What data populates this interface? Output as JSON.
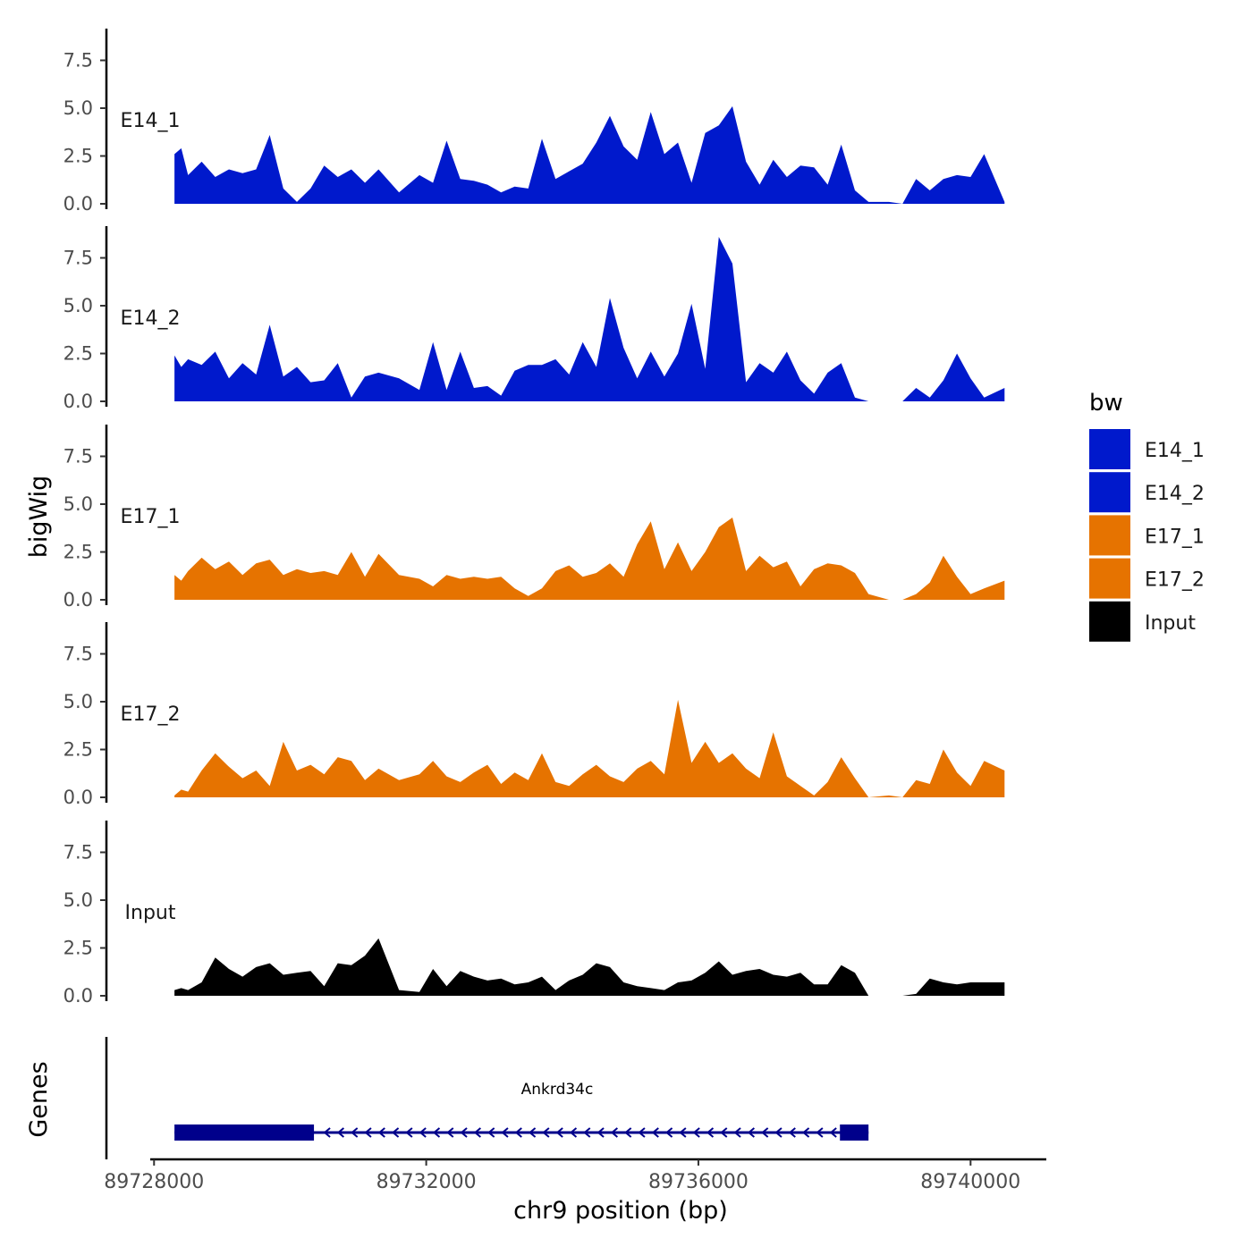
{
  "chart_data": {
    "type": "area",
    "title": "",
    "ylabel": "bigWig",
    "xlabel": "chr9 position (bp)",
    "genes_label": "Genes",
    "ylim": [
      0,
      9.2
    ],
    "y_ticks": [
      0.0,
      2.5,
      5.0,
      7.5
    ],
    "y_tick_labels": [
      "0.0",
      "2.5",
      "5.0",
      "7.5"
    ],
    "x_ticks": [
      89728000,
      89732000,
      89736000,
      89740000
    ],
    "x_tick_labels": [
      "89728000",
      "89732000",
      "89736000",
      "89740000"
    ],
    "xlim": [
      89727300,
      89741100
    ],
    "legend": {
      "title": "bw",
      "position": "right",
      "entries": [
        {
          "label": "E14_1",
          "color": "#0019cc"
        },
        {
          "label": "E14_2",
          "color": "#0019cc"
        },
        {
          "label": "E17_1",
          "color": "#e67300"
        },
        {
          "label": "E17_2",
          "color": "#e67300"
        },
        {
          "label": "Input",
          "color": "#000000"
        }
      ]
    },
    "tracks": [
      {
        "name": "E14_1",
        "color": "#0019cc",
        "x": [
          89728300,
          89728400,
          89728500,
          89728700,
          89728900,
          89729100,
          89729300,
          89729500,
          89729700,
          89729900,
          89730100,
          89730300,
          89730500,
          89730700,
          89730900,
          89731100,
          89731300,
          89731600,
          89731900,
          89732100,
          89732300,
          89732500,
          89732700,
          89732900,
          89733100,
          89733300,
          89733500,
          89733700,
          89733900,
          89734100,
          89734300,
          89734500,
          89734700,
          89734900,
          89735100,
          89735300,
          89735500,
          89735700,
          89735900,
          89736100,
          89736300,
          89736500,
          89736700,
          89736900,
          89737100,
          89737300,
          89737500,
          89737700,
          89737900,
          89738100,
          89738300,
          89738500,
          89738800,
          89739000,
          89739200,
          89739400,
          89739600,
          89739800,
          89740000,
          89740200,
          89740500
        ],
        "values": [
          [
            2.6,
            2.9,
            1.5,
            2.2,
            1.4,
            1.8,
            1.6,
            1.8,
            3.6,
            0.8,
            0.1,
            0.8,
            2.0,
            1.4,
            1.8,
            1.1,
            1.8,
            0.6,
            1.5,
            1.1,
            3.3,
            1.3,
            1.2,
            1.0,
            0.6,
            0.9,
            0.8,
            3.4,
            1.3,
            1.7,
            2.1,
            3.2,
            4.6,
            3.0,
            2.3,
            4.8,
            2.6,
            3.2,
            1.1,
            3.7,
            4.1,
            5.1,
            2.2,
            1.0,
            2.3,
            1.4,
            2.0,
            1.9,
            1.0,
            3.1,
            0.7,
            0.1,
            0.1,
            0.0,
            1.3,
            0.7,
            1.3,
            1.5,
            1.4,
            2.6,
            0.1
          ]
        ]
      },
      {
        "name": "E14_2",
        "color": "#0019cc",
        "x": [
          89728300,
          89728400,
          89728500,
          89728700,
          89728900,
          89729100,
          89729300,
          89729500,
          89729700,
          89729900,
          89730100,
          89730300,
          89730500,
          89730700,
          89730900,
          89731100,
          89731300,
          89731600,
          89731900,
          89732100,
          89732300,
          89732500,
          89732700,
          89732900,
          89733100,
          89733300,
          89733500,
          89733700,
          89733900,
          89734100,
          89734300,
          89734500,
          89734700,
          89734900,
          89735100,
          89735300,
          89735500,
          89735700,
          89735900,
          89736100,
          89736300,
          89736500,
          89736700,
          89736900,
          89737100,
          89737300,
          89737500,
          89737700,
          89737900,
          89738100,
          89738300,
          89738500,
          89738800,
          89739000,
          89739200,
          89739400,
          89739600,
          89739800,
          89740000,
          89740200,
          89740500
        ],
        "values": [
          [
            2.4,
            1.8,
            2.2,
            1.9,
            2.6,
            1.2,
            2.0,
            1.4,
            4.0,
            1.3,
            1.8,
            1.0,
            1.1,
            2.0,
            0.2,
            1.3,
            1.5,
            1.2,
            0.6,
            3.1,
            0.6,
            2.6,
            0.7,
            0.8,
            0.3,
            1.6,
            1.9,
            1.9,
            2.2,
            1.4,
            3.1,
            1.8,
            5.4,
            2.8,
            1.2,
            2.6,
            1.3,
            2.5,
            5.1,
            1.7,
            8.6,
            7.2,
            1.0,
            2.0,
            1.5,
            2.6,
            1.1,
            0.4,
            1.5,
            2.0,
            0.2,
            0.0,
            0.0,
            0.0,
            0.7,
            0.2,
            1.1,
            2.5,
            1.2,
            0.2,
            0.7
          ]
        ]
      },
      {
        "name": "E17_1",
        "color": "#e67300",
        "x": [
          89728300,
          89728400,
          89728500,
          89728700,
          89728900,
          89729100,
          89729300,
          89729500,
          89729700,
          89729900,
          89730100,
          89730300,
          89730500,
          89730700,
          89730900,
          89731100,
          89731300,
          89731600,
          89731900,
          89732100,
          89732300,
          89732500,
          89732700,
          89732900,
          89733100,
          89733300,
          89733500,
          89733700,
          89733900,
          89734100,
          89734300,
          89734500,
          89734700,
          89734900,
          89735100,
          89735300,
          89735500,
          89735700,
          89735900,
          89736100,
          89736300,
          89736500,
          89736700,
          89736900,
          89737100,
          89737300,
          89737500,
          89737700,
          89737900,
          89738100,
          89738300,
          89738500,
          89738800,
          89739000,
          89739200,
          89739400,
          89739600,
          89739800,
          89740000,
          89740200,
          89740500
        ],
        "values": [
          [
            1.3,
            1.0,
            1.5,
            2.2,
            1.6,
            2.0,
            1.3,
            1.9,
            2.1,
            1.3,
            1.6,
            1.4,
            1.5,
            1.3,
            2.5,
            1.2,
            2.4,
            1.3,
            1.1,
            0.7,
            1.3,
            1.1,
            1.2,
            1.1,
            1.2,
            0.6,
            0.2,
            0.6,
            1.5,
            1.8,
            1.2,
            1.4,
            1.9,
            1.2,
            2.9,
            4.1,
            1.6,
            3.0,
            1.5,
            2.5,
            3.8,
            4.3,
            1.5,
            2.3,
            1.7,
            2.0,
            0.7,
            1.6,
            1.9,
            1.8,
            1.4,
            0.3,
            0.0,
            0.0,
            0.3,
            0.9,
            2.3,
            1.2,
            0.3,
            0.6,
            1.0
          ]
        ]
      },
      {
        "name": "E17_2",
        "color": "#e67300",
        "x": [
          89728300,
          89728400,
          89728500,
          89728700,
          89728900,
          89729100,
          89729300,
          89729500,
          89729700,
          89729900,
          89730100,
          89730300,
          89730500,
          89730700,
          89730900,
          89731100,
          89731300,
          89731600,
          89731900,
          89732100,
          89732300,
          89732500,
          89732700,
          89732900,
          89733100,
          89733300,
          89733500,
          89733700,
          89733900,
          89734100,
          89734300,
          89734500,
          89734700,
          89734900,
          89735100,
          89735300,
          89735500,
          89735700,
          89735900,
          89736100,
          89736300,
          89736500,
          89736700,
          89736900,
          89737100,
          89737300,
          89737500,
          89737700,
          89737900,
          89738100,
          89738300,
          89738500,
          89738800,
          89739000,
          89739200,
          89739400,
          89739600,
          89739800,
          89740000,
          89740200,
          89740500
        ],
        "values": [
          [
            0.1,
            0.4,
            0.3,
            1.4,
            2.3,
            1.6,
            1.0,
            1.4,
            0.6,
            2.9,
            1.4,
            1.7,
            1.2,
            2.1,
            1.9,
            0.9,
            1.5,
            0.9,
            1.2,
            1.9,
            1.1,
            0.8,
            1.3,
            1.7,
            0.7,
            1.3,
            0.9,
            2.3,
            0.8,
            0.6,
            1.2,
            1.7,
            1.1,
            0.8,
            1.5,
            1.9,
            1.2,
            5.1,
            1.8,
            2.9,
            1.8,
            2.3,
            1.5,
            1.0,
            3.4,
            1.1,
            0.6,
            0.1,
            0.8,
            2.1,
            1.0,
            0.0,
            0.1,
            0.0,
            0.9,
            0.7,
            2.5,
            1.3,
            0.6,
            1.9,
            1.4
          ]
        ]
      },
      {
        "name": "Input",
        "color": "#000000",
        "x": [
          89728300,
          89728400,
          89728500,
          89728700,
          89728900,
          89729100,
          89729300,
          89729500,
          89729700,
          89729900,
          89730100,
          89730300,
          89730500,
          89730700,
          89730900,
          89731100,
          89731300,
          89731600,
          89731900,
          89732100,
          89732300,
          89732500,
          89732700,
          89732900,
          89733100,
          89733300,
          89733500,
          89733700,
          89733900,
          89734100,
          89734300,
          89734500,
          89734700,
          89734900,
          89735100,
          89735300,
          89735500,
          89735700,
          89735900,
          89736100,
          89736300,
          89736500,
          89736700,
          89736900,
          89737100,
          89737300,
          89737500,
          89737700,
          89737900,
          89738100,
          89738300,
          89738500,
          89738800,
          89739000,
          89739200,
          89739400,
          89739600,
          89739800,
          89740000,
          89740200,
          89740500
        ],
        "values": [
          [
            0.3,
            0.4,
            0.3,
            0.7,
            2.0,
            1.4,
            1.0,
            1.5,
            1.7,
            1.1,
            1.2,
            1.3,
            0.5,
            1.7,
            1.6,
            2.1,
            3.0,
            0.3,
            0.2,
            1.4,
            0.5,
            1.3,
            1.0,
            0.8,
            0.9,
            0.6,
            0.7,
            1.0,
            0.3,
            0.8,
            1.1,
            1.7,
            1.5,
            0.7,
            0.5,
            0.4,
            0.3,
            0.7,
            0.8,
            1.2,
            1.8,
            1.1,
            1.3,
            1.4,
            1.1,
            1.0,
            1.2,
            0.6,
            0.6,
            1.6,
            1.2,
            0.0,
            0.0,
            0.0,
            0.1,
            0.9,
            0.7,
            0.6,
            0.7,
            0.7,
            0.7
          ]
        ]
      }
    ],
    "gene": {
      "name": "Ankrd34c",
      "strand": "-",
      "start": 89728300,
      "end": 89738500,
      "thick_exons": [
        [
          89728300,
          89730350
        ],
        [
          89738080,
          89738500
        ]
      ],
      "color": "#00008b"
    }
  }
}
